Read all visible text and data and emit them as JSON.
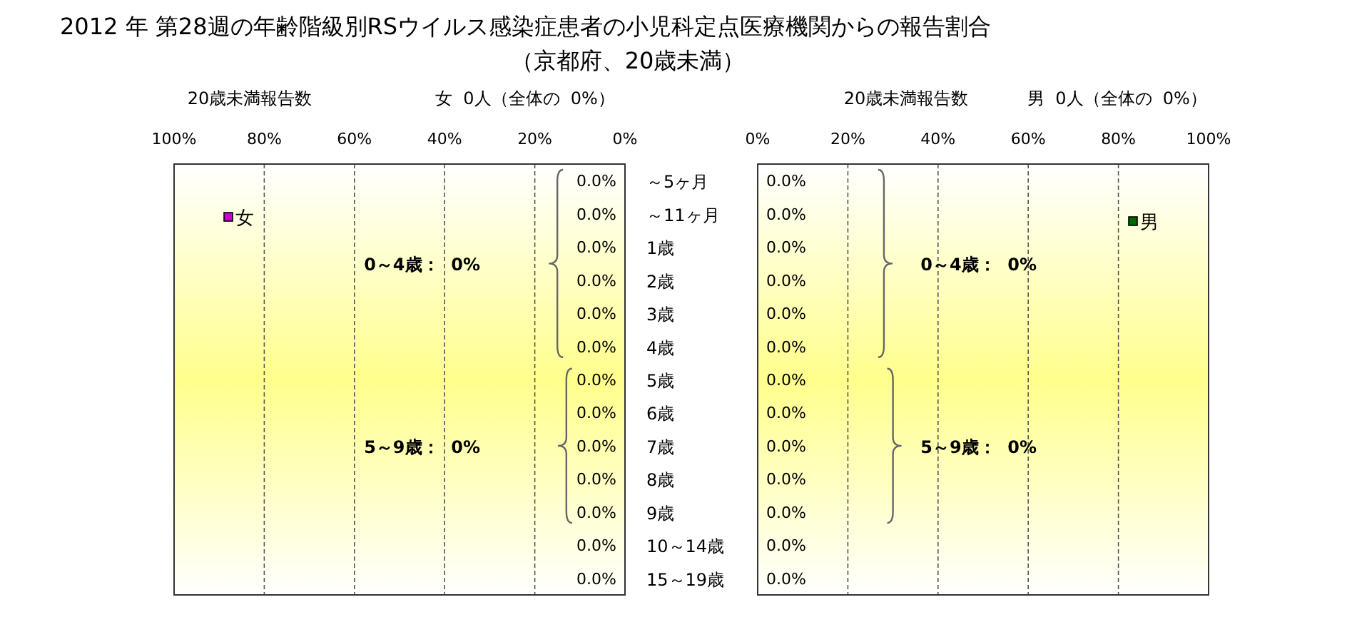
{
  "chart_data": [
    {
      "type": "bar",
      "orientation": "horizontal",
      "title": "2012 年 第28週の年齢階級別RSウイルス感染症患者の小児科定点医療機関からの報告割合",
      "subtitle": "（京都府、20歳未満）",
      "categories": [
        "～5ヶ月",
        "～11ヶ月",
        "1歳",
        "2歳",
        "3歳",
        "4歳",
        "5歳",
        "6歳",
        "7歳",
        "8歳",
        "9歳",
        "10～14歳",
        "15～19歳"
      ],
      "series": [
        {
          "name": "女",
          "color": "#cc00cc",
          "values": [
            0,
            0,
            0,
            0,
            0,
            0,
            0,
            0,
            0,
            0,
            0,
            0,
            0
          ],
          "value_labels": [
            "0.0%",
            "0.0%",
            "0.0%",
            "0.0%",
            "0.0%",
            "0.0%",
            "0.0%",
            "0.0%",
            "0.0%",
            "0.0%",
            "0.0%",
            "0.0%",
            "0.0%"
          ]
        }
      ],
      "xlim": [
        100,
        0
      ],
      "xticks": [
        {
          "value": 100,
          "label": "100%"
        },
        {
          "value": 80,
          "label": "80%"
        },
        {
          "value": 60,
          "label": "60%"
        },
        {
          "value": 40,
          "label": "40%"
        },
        {
          "value": 20,
          "label": "20%"
        },
        {
          "value": 0,
          "label": "0%"
        }
      ],
      "grid": "x",
      "legend": "top left",
      "annotations": [
        "20歳未満報告数",
        "女  0人（全体の  0%）",
        "0～4歳：  0%",
        "5～9歳：  0%"
      ]
    },
    {
      "type": "bar",
      "orientation": "horizontal",
      "categories": [
        null,
        null,
        null,
        null,
        null,
        null,
        null,
        null,
        null,
        null,
        null,
        null,
        null
      ],
      "series": [
        {
          "name": "男",
          "color": "#006600",
          "values": [
            0,
            0,
            0,
            0,
            0,
            0,
            0,
            0,
            0,
            0,
            0,
            0,
            0
          ],
          "value_labels": [
            "0.0%",
            "0.0%",
            "0.0%",
            "0.0%",
            "0.0%",
            "0.0%",
            "0.0%",
            "0.0%",
            "0.0%",
            "0.0%",
            "0.0%",
            "0.0%",
            "0.0%"
          ]
        }
      ],
      "xlim": [
        0,
        100
      ],
      "xticks": [
        {
          "value": 0,
          "label": "0%"
        },
        {
          "value": 20,
          "label": "20%"
        },
        {
          "value": 40,
          "label": "40%"
        },
        {
          "value": 60,
          "label": "60%"
        },
        {
          "value": 80,
          "label": "80%"
        },
        {
          "value": 100,
          "label": "100%"
        }
      ],
      "grid": "x",
      "legend": "top right",
      "annotations": [
        "20歳未満報告数",
        "男  0人（全体の  0%）",
        "0～4歳：  0%",
        "5～9歳：  0%"
      ]
    }
  ]
}
